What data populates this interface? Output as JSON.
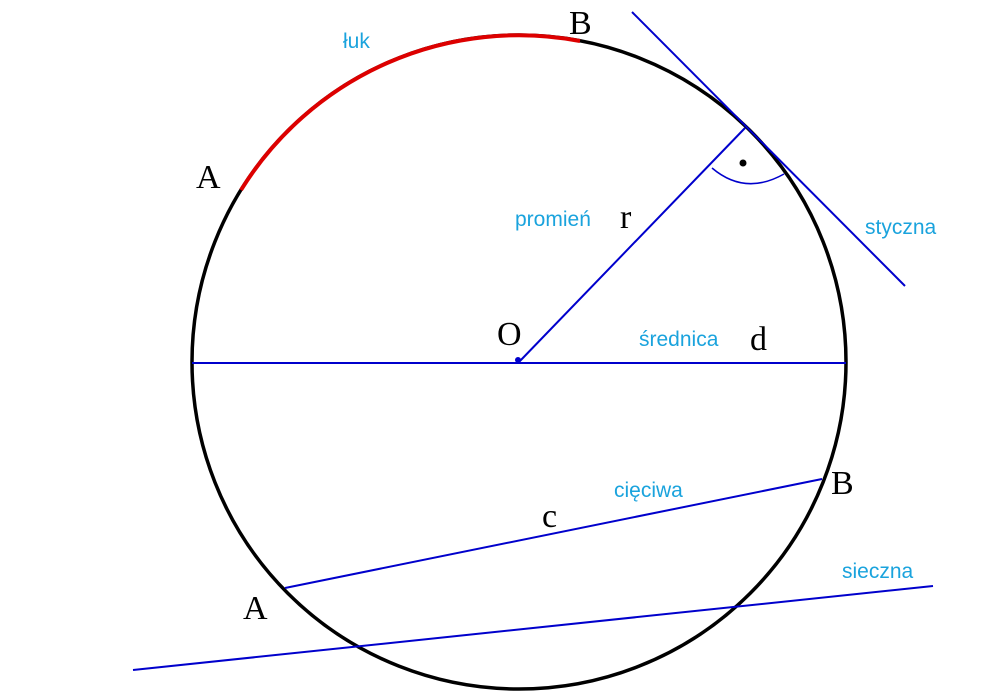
{
  "colors": {
    "circle": "#000000",
    "lines": "#0000cc",
    "arc": "#dd0000",
    "term_labels": "#1aa3dd",
    "point_labels": "#000000"
  },
  "terms": {
    "arc": "łuk",
    "radius": "promień",
    "tangent": "styczna",
    "diameter": "średnica",
    "chord": "cięciwa",
    "secant": "sieczna"
  },
  "symbols": {
    "center": "O",
    "radius": "r",
    "diameter": "d",
    "chord": "c",
    "arc_start": "A",
    "arc_end": "B",
    "chord_start": "A",
    "chord_end": "B"
  }
}
